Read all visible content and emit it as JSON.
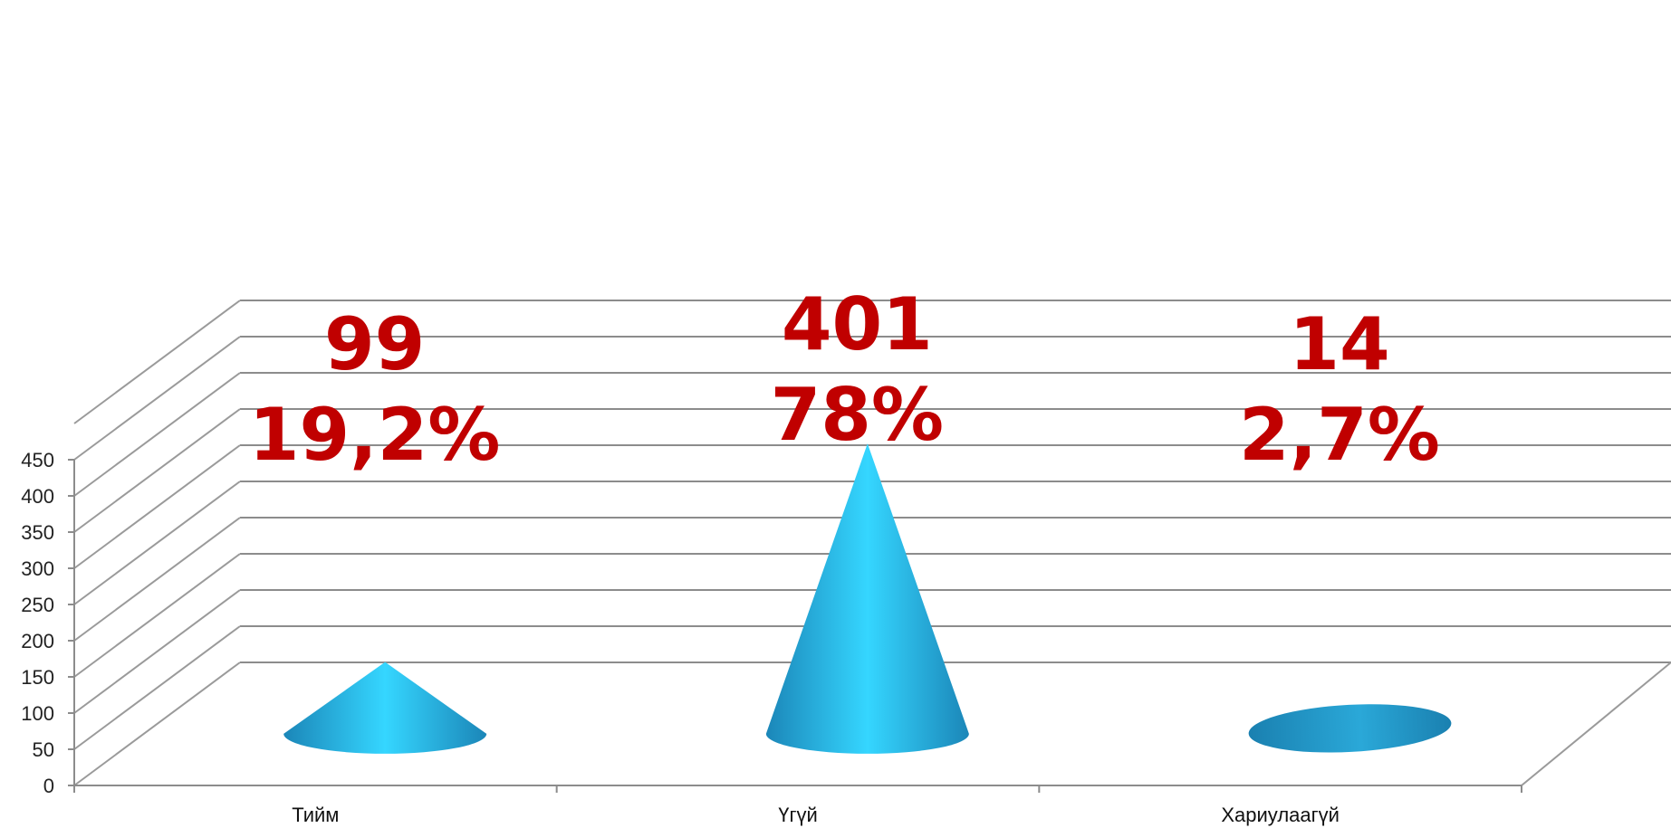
{
  "chart_data": {
    "type": "bar",
    "shape": "cone-3d",
    "categories": [
      "Тийм",
      "Үгүй",
      "Хариулаагүй"
    ],
    "values": [
      99,
      401,
      14
    ],
    "data_labels": [
      {
        "count": "99",
        "percent": "19,2%"
      },
      {
        "count": "401",
        "percent": "78%"
      },
      {
        "count": "14",
        "percent": "2,7%"
      }
    ],
    "ylim": [
      0,
      500
    ],
    "yticks": [
      "0",
      "50",
      "100",
      "150",
      "200",
      "250",
      "300",
      "350",
      "400",
      "450"
    ],
    "grid": true,
    "legend": "none",
    "colors": {
      "cone_dark": "#1b86b8",
      "cone_light": "#35d6ff",
      "label": "#c00000",
      "grid": "#8c8c8c"
    }
  }
}
